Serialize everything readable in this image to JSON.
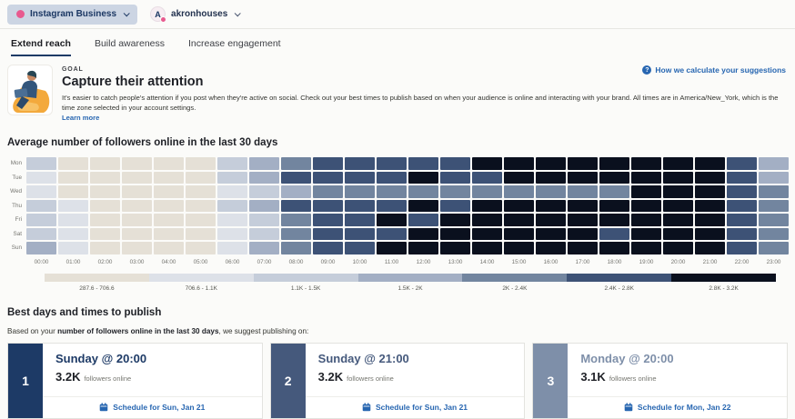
{
  "topbar": {
    "platform": {
      "label": "Instagram Business"
    },
    "account": {
      "name": "akronhouses",
      "avatar_letter": "A"
    },
    "accent_pink": "#e85a8f"
  },
  "tabs": [
    {
      "label": "Extend reach",
      "active": true
    },
    {
      "label": "Build awareness",
      "active": false
    },
    {
      "label": "Increase engagement",
      "active": false
    }
  ],
  "goal": {
    "eyebrow": "GOAL",
    "title": "Capture their attention",
    "description": "It's easier to catch people's attention if you post when they're active on social. Check out your best times to publish based on when your audience is online and interacting with your brand. All times are in America/New_York, which is the time zone selected in your account settings.",
    "learn_more_label": "Learn more",
    "help_link_label": "How we calculate your suggestions"
  },
  "chart_data": {
    "type": "heatmap",
    "title": "Average number of followers online in the last 30 days",
    "rows": [
      "Mon",
      "Tue",
      "Wed",
      "Thu",
      "Fri",
      "Sat",
      "Sun"
    ],
    "columns": [
      "00:00",
      "01:00",
      "02:00",
      "03:00",
      "04:00",
      "05:00",
      "06:00",
      "07:00",
      "08:00",
      "09:00",
      "10:00",
      "11:00",
      "12:00",
      "13:00",
      "14:00",
      "15:00",
      "16:00",
      "17:00",
      "18:00",
      "19:00",
      "20:00",
      "21:00",
      "22:00",
      "23:00"
    ],
    "legend": [
      {
        "label": "287.6 - 706.6",
        "color": "#e5e0d6"
      },
      {
        "label": "706.6 - 1.1K",
        "color": "#dde1e8"
      },
      {
        "label": "1.1K - 1.5K",
        "color": "#c5cdda"
      },
      {
        "label": "1.5K - 2K",
        "color": "#a3afc4"
      },
      {
        "label": "2K - 2.4K",
        "color": "#72859f"
      },
      {
        "label": "2.4K - 2.8K",
        "color": "#3d5276"
      },
      {
        "label": "2.8K - 3.2K",
        "color": "#0a101e"
      }
    ],
    "values_are": "bucket index 1-7 into legend ranges of avg followers online",
    "grid": [
      [
        3,
        1,
        1,
        1,
        1,
        1,
        3,
        4,
        5,
        6,
        6,
        6,
        6,
        6,
        7,
        7,
        7,
        7,
        7,
        7,
        7,
        7,
        6,
        4
      ],
      [
        2,
        1,
        1,
        1,
        1,
        1,
        3,
        4,
        6,
        6,
        6,
        6,
        7,
        6,
        6,
        7,
        7,
        7,
        7,
        7,
        7,
        7,
        6,
        4
      ],
      [
        2,
        1,
        1,
        1,
        1,
        1,
        2,
        3,
        4,
        5,
        5,
        5,
        5,
        5,
        5,
        5,
        5,
        5,
        5,
        7,
        7,
        7,
        6,
        5
      ],
      [
        3,
        2,
        1,
        1,
        1,
        1,
        3,
        4,
        6,
        6,
        6,
        6,
        7,
        6,
        7,
        7,
        7,
        7,
        7,
        7,
        7,
        7,
        6,
        5
      ],
      [
        3,
        2,
        1,
        1,
        1,
        1,
        2,
        3,
        5,
        6,
        6,
        7,
        6,
        7,
        7,
        7,
        7,
        7,
        7,
        7,
        7,
        7,
        6,
        5
      ],
      [
        3,
        2,
        1,
        1,
        1,
        1,
        2,
        3,
        5,
        6,
        6,
        6,
        7,
        7,
        7,
        7,
        7,
        7,
        6,
        7,
        7,
        7,
        6,
        5
      ],
      [
        4,
        2,
        1,
        1,
        1,
        1,
        2,
        4,
        5,
        6,
        6,
        7,
        7,
        7,
        7,
        7,
        7,
        7,
        7,
        7,
        7,
        7,
        6,
        5
      ]
    ]
  },
  "best_times": {
    "title": "Best days and times to publish",
    "intro_prefix": "Based on your ",
    "intro_bold": "number of followers online in the last 30 days",
    "intro_suffix": ", we suggest publishing on:",
    "cards": [
      {
        "rank": "1",
        "title": "Sunday @ 20:00",
        "value": "3.2K",
        "value_suffix": "followers online",
        "schedule_label": "Schedule for Sun, Jan 21",
        "accent": "#1d3a66"
      },
      {
        "rank": "2",
        "title": "Sunday @ 21:00",
        "value": "3.2K",
        "value_suffix": "followers online",
        "schedule_label": "Schedule for Sun, Jan 21",
        "accent": "#45597c"
      },
      {
        "rank": "3",
        "title": "Monday @ 20:00",
        "value": "3.1K",
        "value_suffix": "followers online",
        "schedule_label": "Schedule for Mon, Jan 22",
        "accent": "#7e8fa9"
      }
    ]
  }
}
